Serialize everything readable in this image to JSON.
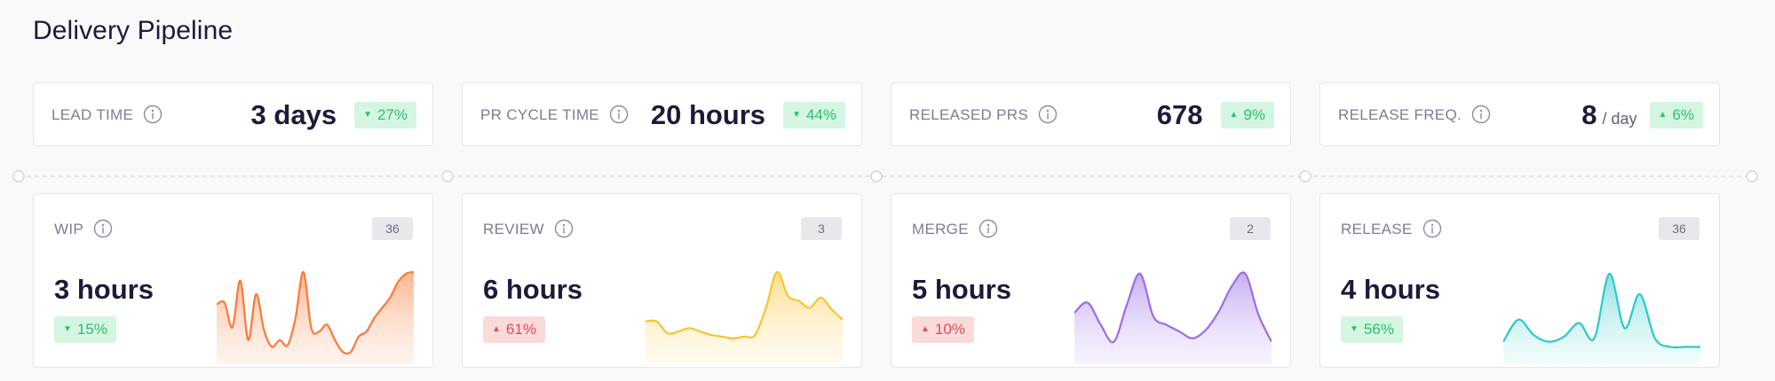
{
  "title": "Delivery Pipeline",
  "kpis": [
    {
      "label": "LEAD TIME",
      "value": "3 days",
      "unit": "",
      "change": "27%",
      "direction": "down",
      "tone": "green"
    },
    {
      "label": "PR CYCLE TIME",
      "value": "20 hours",
      "unit": "",
      "change": "44%",
      "direction": "down",
      "tone": "green"
    },
    {
      "label": "RELEASED PRS",
      "value": "678",
      "unit": "",
      "change": "9%",
      "direction": "up",
      "tone": "green"
    },
    {
      "label": "RELEASE FREQ.",
      "value": "8",
      "unit": "/ day",
      "change": "6%",
      "direction": "up",
      "tone": "green"
    }
  ],
  "stages": [
    {
      "label": "WIP",
      "count": "36",
      "value": "3 hours",
      "change": "15%",
      "direction": "down",
      "tone": "green",
      "color": "#f97a3a",
      "fill": "#fdd5bf",
      "trend": [
        0.62,
        0.64,
        0.35,
        0.9,
        0.2,
        0.74,
        0.32,
        0.12,
        0.2,
        0.14,
        0.46,
        1.0,
        0.34,
        0.3,
        0.38,
        0.2,
        0.06,
        0.06,
        0.24,
        0.3,
        0.46,
        0.58,
        0.7,
        0.88,
        0.98,
        1.0
      ]
    },
    {
      "label": "REVIEW",
      "count": "3",
      "value": "6 hours",
      "change": "61%",
      "direction": "up",
      "tone": "red",
      "color": "#f7c531",
      "fill": "#feefc4",
      "trend": [
        0.42,
        0.42,
        0.28,
        0.3,
        0.34,
        0.3,
        0.26,
        0.24,
        0.22,
        0.24,
        0.26,
        0.58,
        1.0,
        0.72,
        0.66,
        0.58,
        0.7,
        0.56,
        0.44
      ]
    },
    {
      "label": "MERGE",
      "count": "2",
      "value": "5 hours",
      "change": "10%",
      "direction": "up",
      "tone": "red",
      "color": "#9b6ce8",
      "fill": "#e0d0fb",
      "trend": [
        0.52,
        0.64,
        0.38,
        0.18,
        0.62,
        0.98,
        0.48,
        0.38,
        0.3,
        0.22,
        0.32,
        0.54,
        0.84,
        0.98,
        0.5,
        0.18
      ]
    },
    {
      "label": "RELEASE",
      "count": "36",
      "value": "4 hours",
      "change": "56%",
      "direction": "down",
      "tone": "green",
      "color": "#2ec9c8",
      "fill": "#cdf4f2",
      "trend": [
        0.18,
        0.44,
        0.26,
        0.18,
        0.24,
        0.4,
        0.22,
        0.98,
        0.34,
        0.74,
        0.22,
        0.12,
        0.12,
        0.12
      ]
    }
  ]
}
